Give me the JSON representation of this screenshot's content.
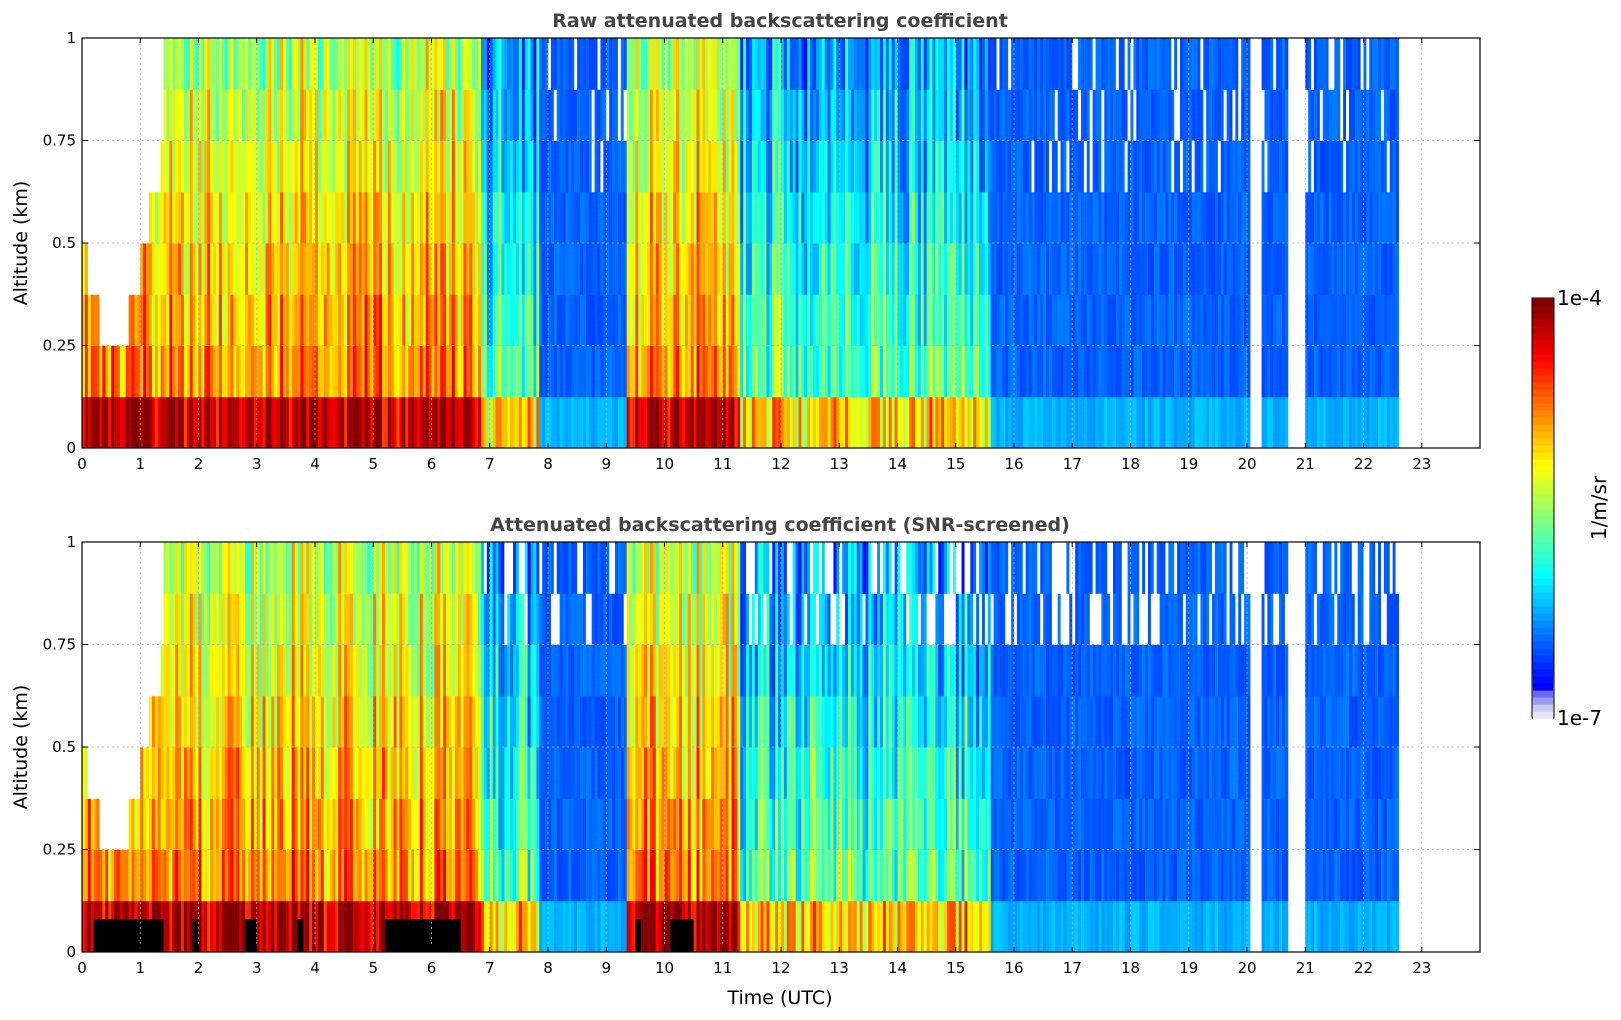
{
  "chart_data": [
    {
      "type": "heatmap",
      "title": "Raw attenuated backscattering coefficient",
      "xlabel": "",
      "ylabel": "Altitude (km)",
      "xlim": [
        0,
        24
      ],
      "ylim": [
        0,
        1
      ],
      "x_ticks": [
        0,
        1,
        2,
        3,
        4,
        5,
        6,
        7,
        8,
        9,
        10,
        11,
        12,
        13,
        14,
        15,
        16,
        17,
        18,
        19,
        20,
        21,
        22,
        23
      ],
      "y_ticks": [
        0,
        0.25,
        0.5,
        0.75,
        1
      ],
      "y_tick_labels": [
        "0",
        "0.25",
        "0.5",
        "0.75",
        "1"
      ],
      "grid": true,
      "data_end_hour": 22.6,
      "colorscale": "jet",
      "log_scale": true,
      "value_range": [
        "1e-7",
        "1e-4"
      ],
      "signal_segments": [
        {
          "start": 0.0,
          "end": 1.3,
          "level": "high"
        },
        {
          "start": 1.3,
          "end": 6.8,
          "level": "high"
        },
        {
          "start": 6.8,
          "end": 7.8,
          "level": "mixed"
        },
        {
          "start": 7.8,
          "end": 9.3,
          "level": "low"
        },
        {
          "start": 9.3,
          "end": 11.3,
          "level": "high"
        },
        {
          "start": 11.3,
          "end": 15.6,
          "level": "mixed"
        },
        {
          "start": 15.6,
          "end": 22.6,
          "level": "low"
        }
      ]
    },
    {
      "type": "heatmap",
      "title": "Attenuated backscattering coefficient (SNR-screened)",
      "xlabel": "Time (UTC)",
      "ylabel": "Altitude (km)",
      "xlim": [
        0,
        24
      ],
      "ylim": [
        0,
        1
      ],
      "x_ticks": [
        0,
        1,
        2,
        3,
        4,
        5,
        6,
        7,
        8,
        9,
        10,
        11,
        12,
        13,
        14,
        15,
        16,
        17,
        18,
        19,
        20,
        21,
        22,
        23
      ],
      "y_ticks": [
        0,
        0.25,
        0.5,
        0.75,
        1
      ],
      "y_tick_labels": [
        "0",
        "0.25",
        "0.5",
        "0.75",
        "1"
      ],
      "grid": true,
      "data_end_hour": 22.6,
      "colorscale": "jet",
      "log_scale": true,
      "value_range": [
        "1e-7",
        "1e-4"
      ],
      "signal_segments": [
        {
          "start": 0.0,
          "end": 1.3,
          "level": "high"
        },
        {
          "start": 1.3,
          "end": 6.8,
          "level": "high"
        },
        {
          "start": 6.8,
          "end": 7.8,
          "level": "mixed"
        },
        {
          "start": 7.8,
          "end": 9.3,
          "level": "low"
        },
        {
          "start": 9.3,
          "end": 11.3,
          "level": "high"
        },
        {
          "start": 11.3,
          "end": 15.6,
          "level": "mixed"
        },
        {
          "start": 15.6,
          "end": 22.6,
          "level": "low"
        }
      ]
    }
  ],
  "colorbar": {
    "label": "1/m/sr",
    "max_label": "1e-4",
    "min_label": "1e-7",
    "colors": [
      "#e8e8f8",
      "#0000ff",
      "#00c8ff",
      "#40ff80",
      "#ffff00",
      "#ff8000",
      "#ff0000",
      "#800000"
    ]
  }
}
